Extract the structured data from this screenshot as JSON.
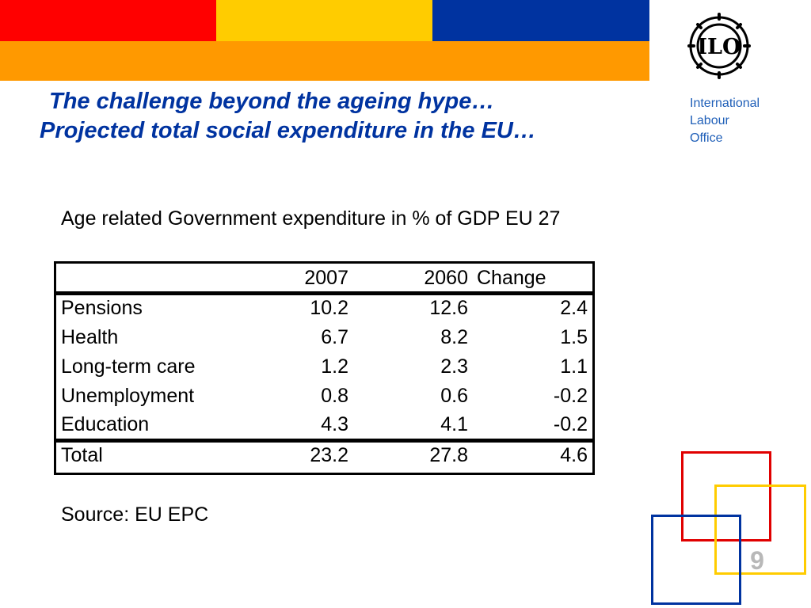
{
  "colors": {
    "band_red": "#ff0000",
    "band_yellow": "#ffcc00",
    "band_blue": "#0033a0",
    "band_orange": "#ff9900",
    "title_blue": "#0033a0",
    "org_blue": "#1f5fb8",
    "square_red": "#e00000",
    "square_yellow": "#ffcc00",
    "square_blue": "#0033a0"
  },
  "header": {
    "title_line1": "The challenge beyond the ageing hype…",
    "title_line2": "Projected total social expenditure in the EU…"
  },
  "organization": {
    "logo_icon": "ilo-emblem-icon",
    "logo_text": "ILO",
    "name_line1": "International",
    "name_line2": "Labour",
    "name_line3": "Office"
  },
  "subtitle": "Age related Government expenditure  in % of GDP  EU 27",
  "table": {
    "columns": [
      "",
      "2007",
      "2060",
      "Change"
    ],
    "rows": [
      {
        "label": "Pensions",
        "v2007": "10.2",
        "v2060": "12.6",
        "change": "2.4"
      },
      {
        "label": "Health",
        "v2007": "6.7",
        "v2060": "8.2",
        "change": "1.5"
      },
      {
        "label": "Long-term care",
        "v2007": "1.2",
        "v2060": "2.3",
        "change": "1.1"
      },
      {
        "label": "Unemployment",
        "v2007": "0.8",
        "v2060": "0.6",
        "change": "-0.2"
      },
      {
        "label": "Education",
        "v2007": "4.3",
        "v2060": "4.1",
        "change": "-0.2"
      }
    ],
    "total": {
      "label": "Total",
      "v2007": "23.2",
      "v2060": "27.8",
      "change": "4.6"
    }
  },
  "source": "Source:   EU EPC",
  "slide_number": "9"
}
